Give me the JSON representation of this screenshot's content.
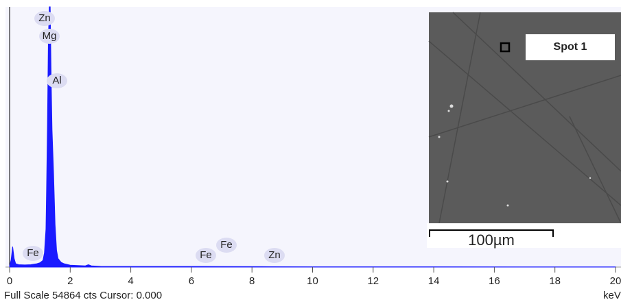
{
  "chart_data": {
    "type": "area",
    "x": [
      0,
      0.05,
      0.1,
      0.15,
      0.2,
      0.3,
      0.5,
      0.7,
      0.9,
      1.0,
      1.1,
      1.15,
      1.2,
      1.22,
      1.25,
      1.28,
      1.31,
      1.34,
      1.37,
      1.4,
      1.45,
      1.5,
      1.55,
      1.6,
      1.7,
      1.8,
      2.0,
      2.5,
      2.6,
      2.7,
      3.0,
      6.4,
      7.0,
      8.6,
      10,
      20
    ],
    "values": [
      200,
      1500,
      4300,
      1800,
      700,
      500,
      450,
      500,
      700,
      900,
      1400,
      3000,
      8000,
      16000,
      30000,
      48000,
      54864,
      54864,
      40000,
      29000,
      20000,
      9000,
      3500,
      1800,
      1000,
      700,
      400,
      250,
      500,
      250,
      150,
      120,
      100,
      80,
      60,
      30
    ],
    "color": "#1a1aff",
    "xlim": [
      0,
      20
    ],
    "xticks": [
      0,
      2,
      4,
      6,
      8,
      10,
      12,
      14,
      16,
      18,
      20
    ],
    "ylim": [
      0,
      54864
    ],
    "x_unit": "keV",
    "footer": "Full Scale 54864 cts Cursor: 0.000",
    "peak_labels": [
      "Zn",
      "Mg",
      "Al",
      "Fe",
      "Fe",
      "Fe",
      "Zn"
    ]
  },
  "inset": {
    "spot_label": "Spot 1",
    "scale_bar": "100µm"
  }
}
